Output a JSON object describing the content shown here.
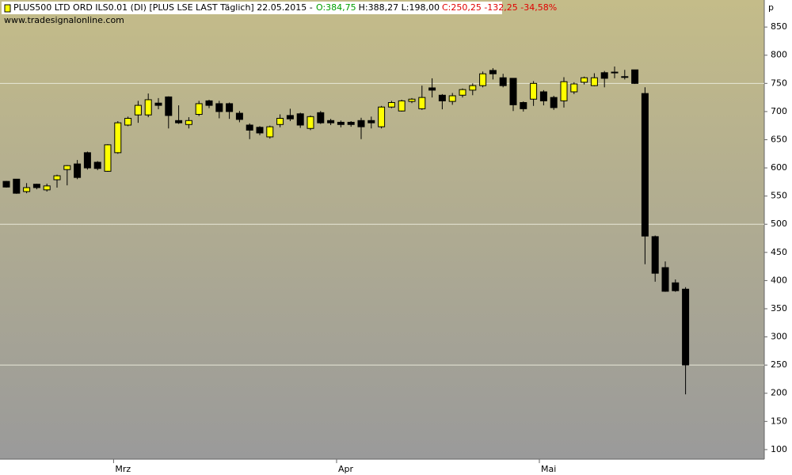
{
  "chart_data": {
    "type": "candlestick",
    "header": [
      {
        "text": "PLUS500 LTD ORD ILS0.01 (DI) [PLUS LSE LAST Täglich] 22.05.2015 -",
        "color": "#000000"
      },
      {
        "text": "O:384,75",
        "color": "#00a000"
      },
      {
        "text": "H:388,27 L:198,00",
        "color": "#000000"
      },
      {
        "text": "C:250,25 -132,25 -34,58%",
        "color": "#e00000"
      }
    ],
    "subtitle": "www.tradesignalonline.com",
    "y_unit": "p",
    "up_color": "#ffff00",
    "down_color": "#000000",
    "categories": [
      null,
      null,
      null,
      null,
      null,
      null,
      null,
      null,
      null,
      null,
      null,
      "Mrz",
      null,
      null,
      null,
      null,
      null,
      null,
      null,
      null,
      null,
      null,
      null,
      null,
      null,
      null,
      null,
      null,
      null,
      null,
      null,
      null,
      null,
      "Apr",
      null,
      null,
      null,
      null,
      null,
      null,
      null,
      null,
      null,
      null,
      null,
      null,
      null,
      null,
      null,
      null,
      null,
      null,
      null,
      "Mai",
      null,
      null,
      null,
      null,
      null,
      null,
      null,
      null,
      null,
      null,
      null,
      null,
      null,
      null
    ],
    "open": [
      576,
      580,
      558,
      571,
      561,
      579,
      597,
      607,
      627,
      610,
      594,
      627,
      676,
      694,
      694,
      715,
      726,
      684,
      677,
      695,
      719,
      714,
      714,
      697,
      676,
      672,
      655,
      677,
      693,
      696,
      670,
      698,
      684,
      681,
      681,
      684,
      684,
      673,
      708,
      701,
      718,
      705,
      742,
      729,
      718,
      729,
      738,
      746,
      773,
      760,
      759,
      716,
      722,
      735,
      725,
      719,
      735,
      752,
      746,
      769,
      770,
      762,
      774,
      732,
      478,
      423,
      396,
      384.75
    ],
    "high": [
      577,
      580,
      573,
      572,
      572,
      588,
      605,
      614,
      629,
      612,
      642,
      683,
      691,
      719,
      732,
      724,
      727,
      711,
      690,
      719,
      721,
      719,
      716,
      701,
      679,
      674,
      675,
      695,
      705,
      698,
      693,
      701,
      687,
      684,
      683,
      689,
      691,
      710,
      719,
      721,
      724,
      746,
      759,
      731,
      733,
      741,
      750,
      771,
      777,
      767,
      759,
      718,
      754,
      738,
      728,
      761,
      752,
      762,
      768,
      772,
      780,
      774,
      774,
      743,
      480,
      434,
      402,
      388.27
    ],
    "low": [
      565,
      554,
      555,
      562,
      558,
      565,
      569,
      580,
      597,
      596,
      593,
      625,
      674,
      680,
      690,
      704,
      670,
      678,
      670,
      692,
      706,
      688,
      687,
      681,
      651,
      658,
      652,
      672,
      683,
      671,
      667,
      678,
      676,
      672,
      673,
      651,
      670,
      670,
      706,
      700,
      715,
      703,
      725,
      704,
      712,
      725,
      729,
      743,
      757,
      743,
      701,
      700,
      710,
      711,
      703,
      707,
      731,
      748,
      745,
      743,
      759,
      757,
      749,
      429,
      398,
      380,
      380,
      198
    ],
    "close": [
      566,
      555,
      565,
      565,
      568,
      586,
      604,
      583,
      600,
      599,
      641,
      680,
      688,
      711,
      721,
      711,
      693,
      680,
      684,
      714,
      711,
      700,
      700,
      686,
      667,
      662,
      673,
      688,
      687,
      676,
      691,
      680,
      680,
      677,
      677,
      673,
      680,
      708,
      716,
      719,
      722,
      725,
      738,
      719,
      728,
      739,
      746,
      767,
      767,
      746,
      712,
      705,
      750,
      719,
      707,
      753,
      749,
      760,
      760,
      759,
      769,
      761,
      750,
      479,
      413,
      381,
      382,
      250.25
    ],
    "ylim": [
      83,
      898
    ],
    "yticks": [
      100,
      150,
      200,
      250,
      300,
      350,
      400,
      450,
      500,
      550,
      600,
      650,
      700,
      750,
      800,
      850
    ],
    "grid_lines": [
      250,
      500,
      750
    ],
    "background": [
      "#c4bc89",
      "#9a9a9a"
    ]
  }
}
